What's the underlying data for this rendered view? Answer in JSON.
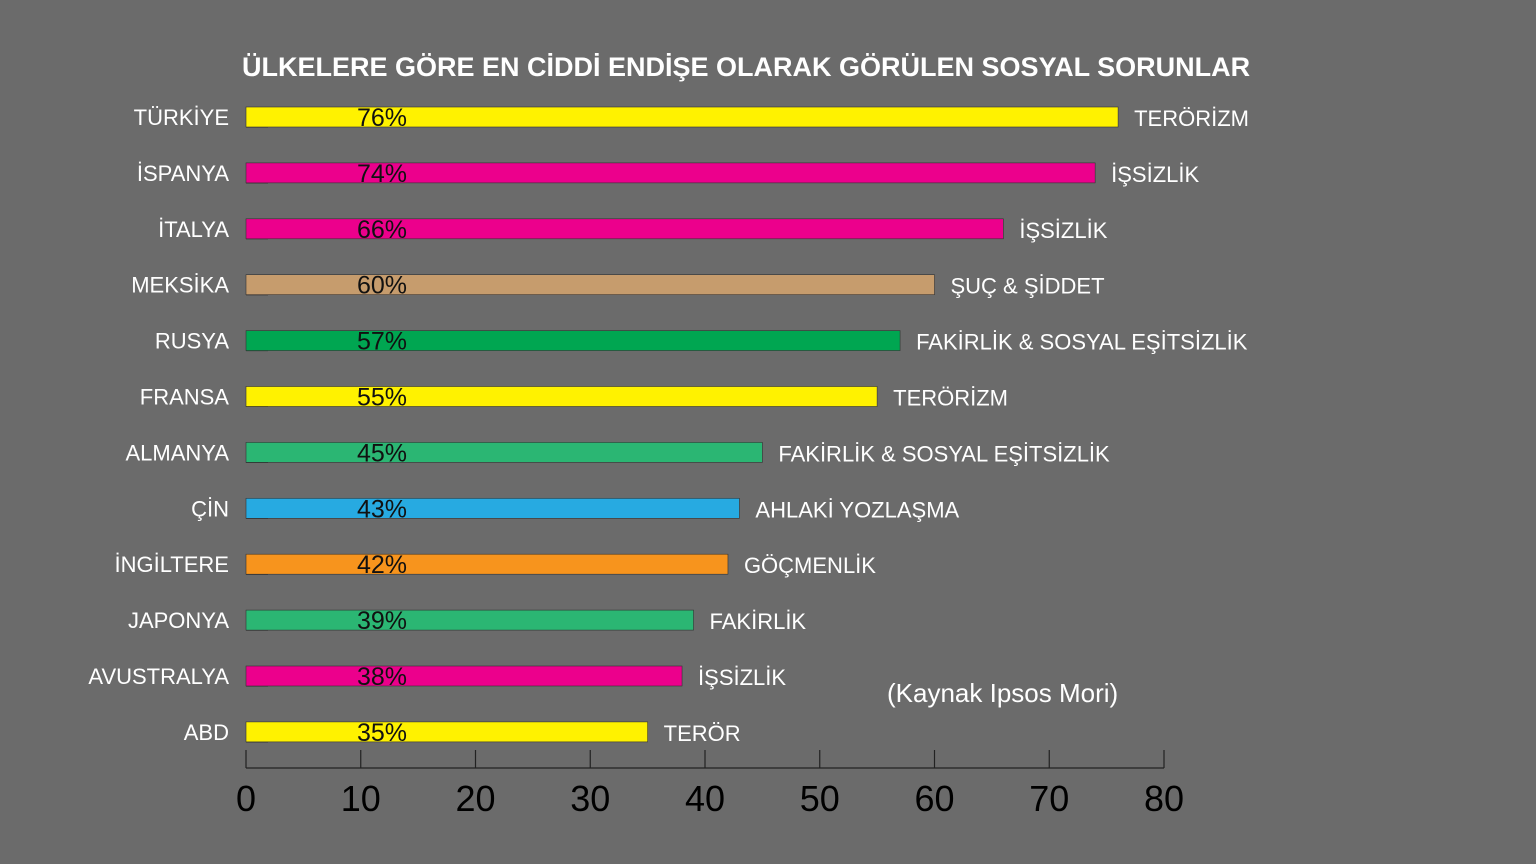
{
  "chart_data": {
    "type": "bar",
    "orientation": "horizontal",
    "title": "ÜLKELERE GÖRE EN CİDDİ ENDİŞE OLARAK GÖRÜLEN SOSYAL SORUNLAR",
    "source_note": "(Kaynak Ipsos Mori)",
    "xlim": [
      0,
      80
    ],
    "x_ticks": [
      "0",
      "10",
      "20",
      "30",
      "40",
      "50",
      "60",
      "70",
      "80"
    ],
    "grid": false,
    "rows": [
      {
        "country": "TÜRKİYE",
        "value": 76,
        "label": "76%",
        "issue": "TERÖRİZM",
        "color": "#fff200"
      },
      {
        "country": "İSPANYA",
        "value": 74,
        "label": "74%",
        "issue": "İŞSİZLİK",
        "color": "#ec008c"
      },
      {
        "country": "İTALYA",
        "value": 66,
        "label": "66%",
        "issue": "İŞSİZLİK",
        "color": "#ec008c"
      },
      {
        "country": "MEKSİKA",
        "value": 60,
        "label": "60%",
        "issue": "ŞUÇ & ŞİDDET",
        "color": "#c69c6d"
      },
      {
        "country": "RUSYA",
        "value": 57,
        "label": "57%",
        "issue": "FAKİRLİK & SOSYAL EŞİTSİZLİK",
        "color": "#00a651"
      },
      {
        "country": "FRANSA",
        "value": 55,
        "label": "55%",
        "issue": "TERÖRİZM",
        "color": "#fff200"
      },
      {
        "country": "ALMANYA",
        "value": 45,
        "label": "45%",
        "issue": "FAKİRLİK & SOSYAL EŞİTSİZLİK",
        "color": "#2bb673"
      },
      {
        "country": "ÇİN",
        "value": 43,
        "label": "43%",
        "issue": "AHLAKİ YOZLAŞMA",
        "color": "#27aae1"
      },
      {
        "country": "İNGİLTERE",
        "value": 42,
        "label": "42%",
        "issue": "GÖÇMENLİK",
        "color": "#f7941d"
      },
      {
        "country": "JAPONYA",
        "value": 39,
        "label": "39%",
        "issue": "FAKİRLİK",
        "color": "#2bb673"
      },
      {
        "country": "AVUSTRALYA",
        "value": 38,
        "label": "38%",
        "issue": "İŞSİZLİK",
        "color": "#ec008c"
      },
      {
        "country": "ABD",
        "value": 35,
        "label": "35%",
        "issue": "TERÖR",
        "color": "#fff200"
      }
    ]
  }
}
